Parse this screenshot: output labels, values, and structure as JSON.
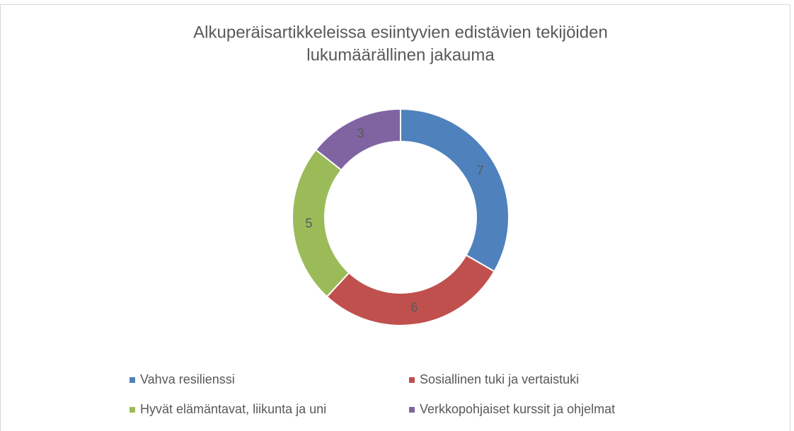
{
  "chart_data": {
    "type": "donut",
    "title": [
      "Alkuperäisartikkeleissa esiintyvien edistävien tekijöiden",
      "lukumäärällinen jakauma"
    ],
    "categories": [
      "Vahva resilienssi",
      "Sosiallinen tuki ja vertaistuki",
      "Hyvät elämäntavat, liikunta ja uni",
      "Verkkopohjaiset kurssit ja ohjelmat"
    ],
    "values": [
      7,
      6,
      5,
      3
    ],
    "colors": [
      "#4f81bd",
      "#c0504d",
      "#9bbb59",
      "#8064a2"
    ],
    "legend": "bottom"
  }
}
